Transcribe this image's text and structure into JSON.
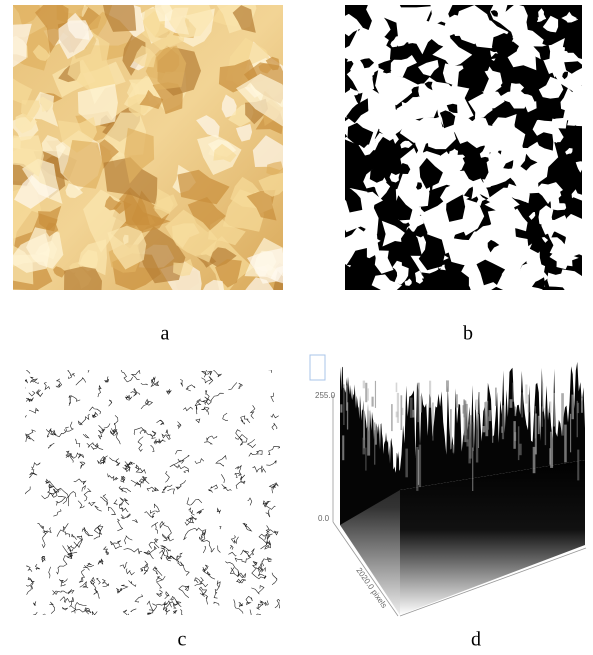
{
  "panels": [
    {
      "label": "a"
    },
    {
      "label": "b"
    },
    {
      "label": "c"
    },
    {
      "label": "d"
    }
  ],
  "panel_d_axis": {
    "z_top": "255.0",
    "z_bottom": "0.0",
    "depth": "2020.0 pixels"
  }
}
